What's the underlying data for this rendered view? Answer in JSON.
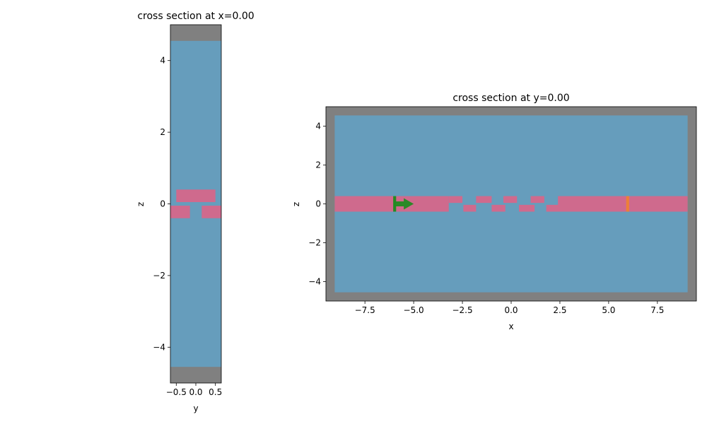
{
  "colors": {
    "pml": "#808080",
    "medium": "#669dbc",
    "structure": "#cf6a8d",
    "source": "#228b22",
    "monitor": "#ed8037"
  },
  "chart_data": [
    {
      "type": "cross-section",
      "title": "cross section at x=0.00",
      "xlabel": "y",
      "ylabel": "z",
      "xlim": [
        -0.65,
        0.65
      ],
      "ylim": [
        -5,
        5
      ],
      "xticks": [
        {
          "v": -0.5,
          "label": "−0.5"
        },
        {
          "v": 0.0,
          "label": "0.0"
        },
        {
          "v": 0.5,
          "label": "0.5"
        }
      ],
      "yticks": [
        {
          "v": -4,
          "label": "−4"
        },
        {
          "v": -2,
          "label": "−2"
        },
        {
          "v": 0,
          "label": "0"
        },
        {
          "v": 2,
          "label": "2"
        },
        {
          "v": 4,
          "label": "4"
        }
      ],
      "background": "pml",
      "medium_region": {
        "x": [
          -0.65,
          0.65
        ],
        "y": [
          -4.55,
          4.55
        ]
      },
      "rects": [
        {
          "x": [
            -0.5,
            0.5
          ],
          "y": [
            0.05,
            0.4
          ],
          "color": "structure"
        },
        {
          "x": [
            -0.65,
            -0.15
          ],
          "y": [
            -0.4,
            -0.05
          ],
          "color": "structure"
        },
        {
          "x": [
            0.15,
            0.65
          ],
          "y": [
            -0.4,
            -0.05
          ],
          "color": "structure"
        }
      ]
    },
    {
      "type": "cross-section",
      "title": "cross section at y=0.00",
      "xlabel": "x",
      "ylabel": "z",
      "xlim": [
        -9.5,
        9.5
      ],
      "ylim": [
        -5,
        5
      ],
      "xticks": [
        {
          "v": -7.5,
          "label": "−7.5"
        },
        {
          "v": -5,
          "label": "−5.0"
        },
        {
          "v": -2.5,
          "label": "−2.5"
        },
        {
          "v": 0,
          "label": "0.0"
        },
        {
          "v": 2.5,
          "label": "2.5"
        },
        {
          "v": 5,
          "label": "5.0"
        },
        {
          "v": 7.5,
          "label": "7.5"
        }
      ],
      "yticks": [
        {
          "v": -4,
          "label": "−4"
        },
        {
          "v": -2,
          "label": "−2"
        },
        {
          "v": 0,
          "label": "0"
        },
        {
          "v": 2,
          "label": "2"
        },
        {
          "v": 4,
          "label": "4"
        }
      ],
      "background": "pml",
      "medium_region": {
        "x": [
          -9.05,
          9.05
        ],
        "y": [
          -4.55,
          4.55
        ]
      },
      "rects": [
        {
          "x": [
            -9.05,
            -3.2
          ],
          "y": [
            -0.4,
            0.4
          ],
          "color": "structure"
        },
        {
          "x": [
            -3.2,
            -2.5
          ],
          "y": [
            0.05,
            0.4
          ],
          "color": "structure"
        },
        {
          "x": [
            -2.45,
            -1.8
          ],
          "y": [
            -0.4,
            -0.05
          ],
          "color": "structure"
        },
        {
          "x": [
            -1.8,
            -1.0
          ],
          "y": [
            0.05,
            0.4
          ],
          "color": "structure"
        },
        {
          "x": [
            -1.0,
            -0.3
          ],
          "y": [
            -0.4,
            -0.05
          ],
          "color": "structure"
        },
        {
          "x": [
            -0.4,
            0.3
          ],
          "y": [
            0.05,
            0.4
          ],
          "color": "structure"
        },
        {
          "x": [
            0.4,
            1.2
          ],
          "y": [
            -0.4,
            -0.05
          ],
          "color": "structure"
        },
        {
          "x": [
            1.0,
            1.7
          ],
          "y": [
            0.05,
            0.4
          ],
          "color": "structure"
        },
        {
          "x": [
            1.8,
            2.8
          ],
          "y": [
            -0.4,
            -0.05
          ],
          "color": "structure"
        },
        {
          "x": [
            2.4,
            9.05
          ],
          "y": [
            -0.4,
            0.4
          ],
          "color": "structure"
        },
        {
          "x": [
            -6.05,
            -5.9
          ],
          "y": [
            -0.4,
            0.4
          ],
          "color": "source"
        },
        {
          "x": [
            5.9,
            6.05
          ],
          "y": [
            -0.4,
            0.4
          ],
          "color": "monitor"
        }
      ],
      "arrows": [
        {
          "x0": -5.95,
          "x1": -5.0,
          "y": 0.0,
          "color": "source"
        }
      ]
    }
  ]
}
